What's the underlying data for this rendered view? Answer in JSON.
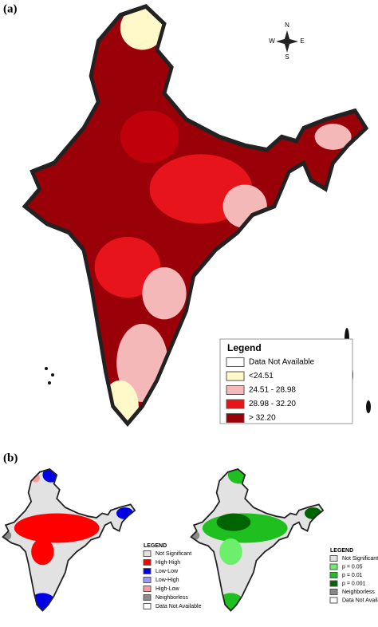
{
  "panel_a": {
    "label": "(a)",
    "compass": {
      "n": "N",
      "s": "S",
      "e": "E",
      "w": "W"
    },
    "legend": {
      "title": "Legend",
      "items": [
        {
          "label": "Data Not Available",
          "color": "#ffffff"
        },
        {
          "label": "<24.51",
          "color": "#fff8c8"
        },
        {
          "label": "24.51 - 28.98",
          "color": "#f4b8b8"
        },
        {
          "label": "28.98 - 32.20",
          "color": "#e8141c"
        },
        {
          "label": "> 32.20",
          "color": "#9a0008"
        }
      ]
    }
  },
  "panel_b": {
    "label": "(b)",
    "lisa_legend": {
      "title": "LEGEND",
      "items": [
        {
          "label": "Not Significant",
          "color": "#e2e2e2"
        },
        {
          "label": "High-High",
          "color": "#ff0000"
        },
        {
          "label": "Low-Low",
          "color": "#0000e6"
        },
        {
          "label": "Low-High",
          "color": "#9a9aff"
        },
        {
          "label": "High-Low",
          "color": "#ff9a9a"
        },
        {
          "label": "Neighborless",
          "color": "#8a8a8a"
        },
        {
          "label": "Data Not Available",
          "color": "#ffffff"
        }
      ]
    },
    "sig_legend": {
      "title": "LEGEND",
      "items": [
        {
          "label": "Not Significant",
          "color": "#e2e2e2"
        },
        {
          "label": "p = 0.05",
          "color": "#6cf06c"
        },
        {
          "label": "p = 0.01",
          "color": "#1fbf1f"
        },
        {
          "label": "p = 0.001",
          "color": "#006400"
        },
        {
          "label": "Neighborless",
          "color": "#8a8a8a"
        },
        {
          "label": "Data Not Available",
          "color": "#ffffff"
        }
      ]
    }
  }
}
